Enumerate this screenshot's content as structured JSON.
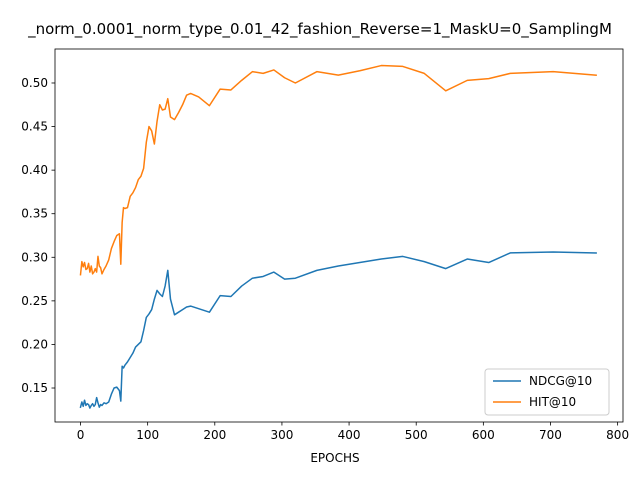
{
  "chart_data": {
    "type": "line",
    "title": "_norm_0.0001_norm_type_0.01_42_fashion_Reverse=1_MaskU=0_SamplingM",
    "xlabel": "EPOCHS",
    "ylabel": "",
    "xlim": [
      -38,
      808
    ],
    "ylim": [
      0.111,
      0.539
    ],
    "xticks": [
      0,
      100,
      200,
      300,
      400,
      500,
      600,
      700,
      800
    ],
    "yticks": [
      0.15,
      0.2,
      0.25,
      0.3,
      0.35,
      0.4,
      0.45,
      0.5
    ],
    "ytick_labels": [
      "0.15",
      "0.20",
      "0.25",
      "0.30",
      "0.35",
      "0.40",
      "0.45",
      "0.50"
    ],
    "grid": false,
    "legend_position": "lower-right",
    "series": [
      {
        "name": "NDCG@10",
        "color": "#1f77b4",
        "x": [
          0,
          2,
          4,
          6,
          8,
          10,
          12,
          14,
          16,
          18,
          20,
          22,
          24,
          26,
          28,
          30,
          32,
          35,
          38,
          42,
          46,
          50,
          54,
          58,
          60,
          62,
          64,
          66,
          70,
          74,
          78,
          82,
          86,
          90,
          94,
          98,
          102,
          106,
          110,
          114,
          118,
          122,
          126,
          130,
          134,
          140,
          146,
          152,
          158,
          164,
          176,
          192,
          208,
          224,
          240,
          256,
          272,
          288,
          304,
          320,
          352,
          384,
          416,
          448,
          480,
          512,
          544,
          576,
          608,
          640,
          704,
          768
        ],
        "y": [
          0.128,
          0.134,
          0.129,
          0.136,
          0.13,
          0.132,
          0.131,
          0.127,
          0.13,
          0.132,
          0.129,
          0.131,
          0.139,
          0.133,
          0.128,
          0.131,
          0.13,
          0.133,
          0.132,
          0.134,
          0.143,
          0.15,
          0.151,
          0.147,
          0.135,
          0.175,
          0.173,
          0.176,
          0.18,
          0.185,
          0.19,
          0.197,
          0.2,
          0.203,
          0.216,
          0.231,
          0.235,
          0.24,
          0.252,
          0.262,
          0.258,
          0.255,
          0.267,
          0.285,
          0.252,
          0.234,
          0.237,
          0.24,
          0.243,
          0.244,
          0.241,
          0.237,
          0.256,
          0.255,
          0.267,
          0.276,
          0.278,
          0.283,
          0.275,
          0.276,
          0.285,
          0.29,
          0.294,
          0.298,
          0.301,
          0.295,
          0.287,
          0.298,
          0.294,
          0.305,
          0.306,
          0.305
        ]
      },
      {
        "name": "HIT@10",
        "color": "#ff7f0e",
        "x": [
          0,
          2,
          4,
          6,
          8,
          10,
          12,
          14,
          16,
          18,
          20,
          22,
          24,
          26,
          28,
          30,
          32,
          35,
          38,
          42,
          46,
          50,
          54,
          58,
          60,
          62,
          64,
          66,
          70,
          74,
          78,
          82,
          86,
          90,
          94,
          98,
          102,
          106,
          110,
          114,
          118,
          122,
          126,
          130,
          134,
          140,
          146,
          152,
          158,
          164,
          176,
          192,
          208,
          224,
          240,
          256,
          272,
          288,
          304,
          320,
          352,
          384,
          416,
          448,
          480,
          512,
          544,
          576,
          608,
          640,
          704,
          768
        ],
        "y": [
          0.28,
          0.295,
          0.289,
          0.294,
          0.286,
          0.287,
          0.293,
          0.283,
          0.29,
          0.281,
          0.283,
          0.287,
          0.283,
          0.301,
          0.29,
          0.288,
          0.281,
          0.286,
          0.29,
          0.297,
          0.31,
          0.318,
          0.325,
          0.327,
          0.292,
          0.34,
          0.357,
          0.356,
          0.357,
          0.37,
          0.374,
          0.38,
          0.389,
          0.393,
          0.402,
          0.432,
          0.45,
          0.445,
          0.43,
          0.456,
          0.475,
          0.469,
          0.47,
          0.482,
          0.461,
          0.458,
          0.466,
          0.475,
          0.486,
          0.488,
          0.484,
          0.474,
          0.493,
          0.492,
          0.503,
          0.513,
          0.511,
          0.515,
          0.506,
          0.5,
          0.513,
          0.509,
          0.514,
          0.52,
          0.519,
          0.511,
          0.491,
          0.503,
          0.505,
          0.511,
          0.513,
          0.509
        ]
      }
    ]
  }
}
